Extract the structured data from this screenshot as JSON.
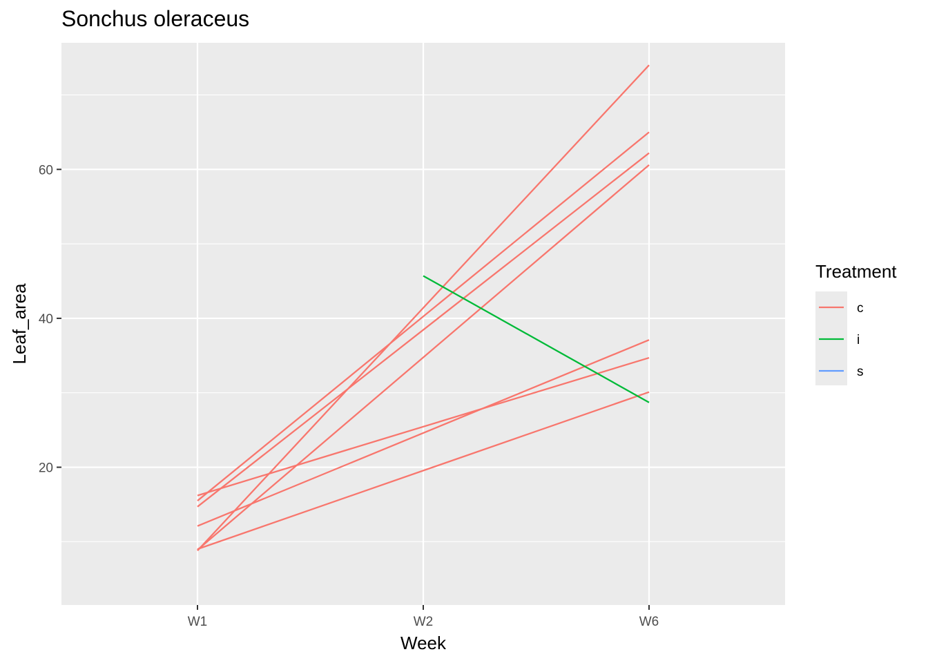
{
  "chart_data": {
    "type": "line",
    "title": "Sonchus oleraceus",
    "xlabel": "Week",
    "ylabel": "Leaf_area",
    "categories": [
      "W1",
      "W2",
      "W6"
    ],
    "ylim": [
      1.5,
      77
    ],
    "y_ticks": [
      20,
      40,
      60
    ],
    "y_minor_ticks": [
      10,
      30,
      50,
      70
    ],
    "grid": true,
    "legend": {
      "title": "Treatment",
      "position": "right",
      "entries": [
        {
          "label": "c",
          "color": "#F8766D"
        },
        {
          "label": "i",
          "color": "#00BA38"
        },
        {
          "label": "s",
          "color": "#619CFF"
        }
      ]
    },
    "series": [
      {
        "treatment": "c",
        "color": "#F8766D",
        "x": [
          "W1",
          "W6"
        ],
        "y": [
          8.8,
          74.0
        ]
      },
      {
        "treatment": "c",
        "color": "#F8766D",
        "x": [
          "W1",
          "W6"
        ],
        "y": [
          15.5,
          65.0
        ]
      },
      {
        "treatment": "c",
        "color": "#F8766D",
        "x": [
          "W1",
          "W6"
        ],
        "y": [
          14.7,
          62.2
        ]
      },
      {
        "treatment": "c",
        "color": "#F8766D",
        "x": [
          "W1",
          "W6"
        ],
        "y": [
          8.9,
          60.6
        ]
      },
      {
        "treatment": "c",
        "color": "#F8766D",
        "x": [
          "W1",
          "W6"
        ],
        "y": [
          12.1,
          37.1
        ]
      },
      {
        "treatment": "c",
        "color": "#F8766D",
        "x": [
          "W1",
          "W6"
        ],
        "y": [
          16.2,
          34.7
        ]
      },
      {
        "treatment": "c",
        "color": "#F8766D",
        "x": [
          "W1",
          "W6"
        ],
        "y": [
          9.0,
          30.1
        ]
      },
      {
        "treatment": "i",
        "color": "#00BA38",
        "x": [
          "W2",
          "W6"
        ],
        "y": [
          45.7,
          28.7
        ]
      }
    ]
  }
}
